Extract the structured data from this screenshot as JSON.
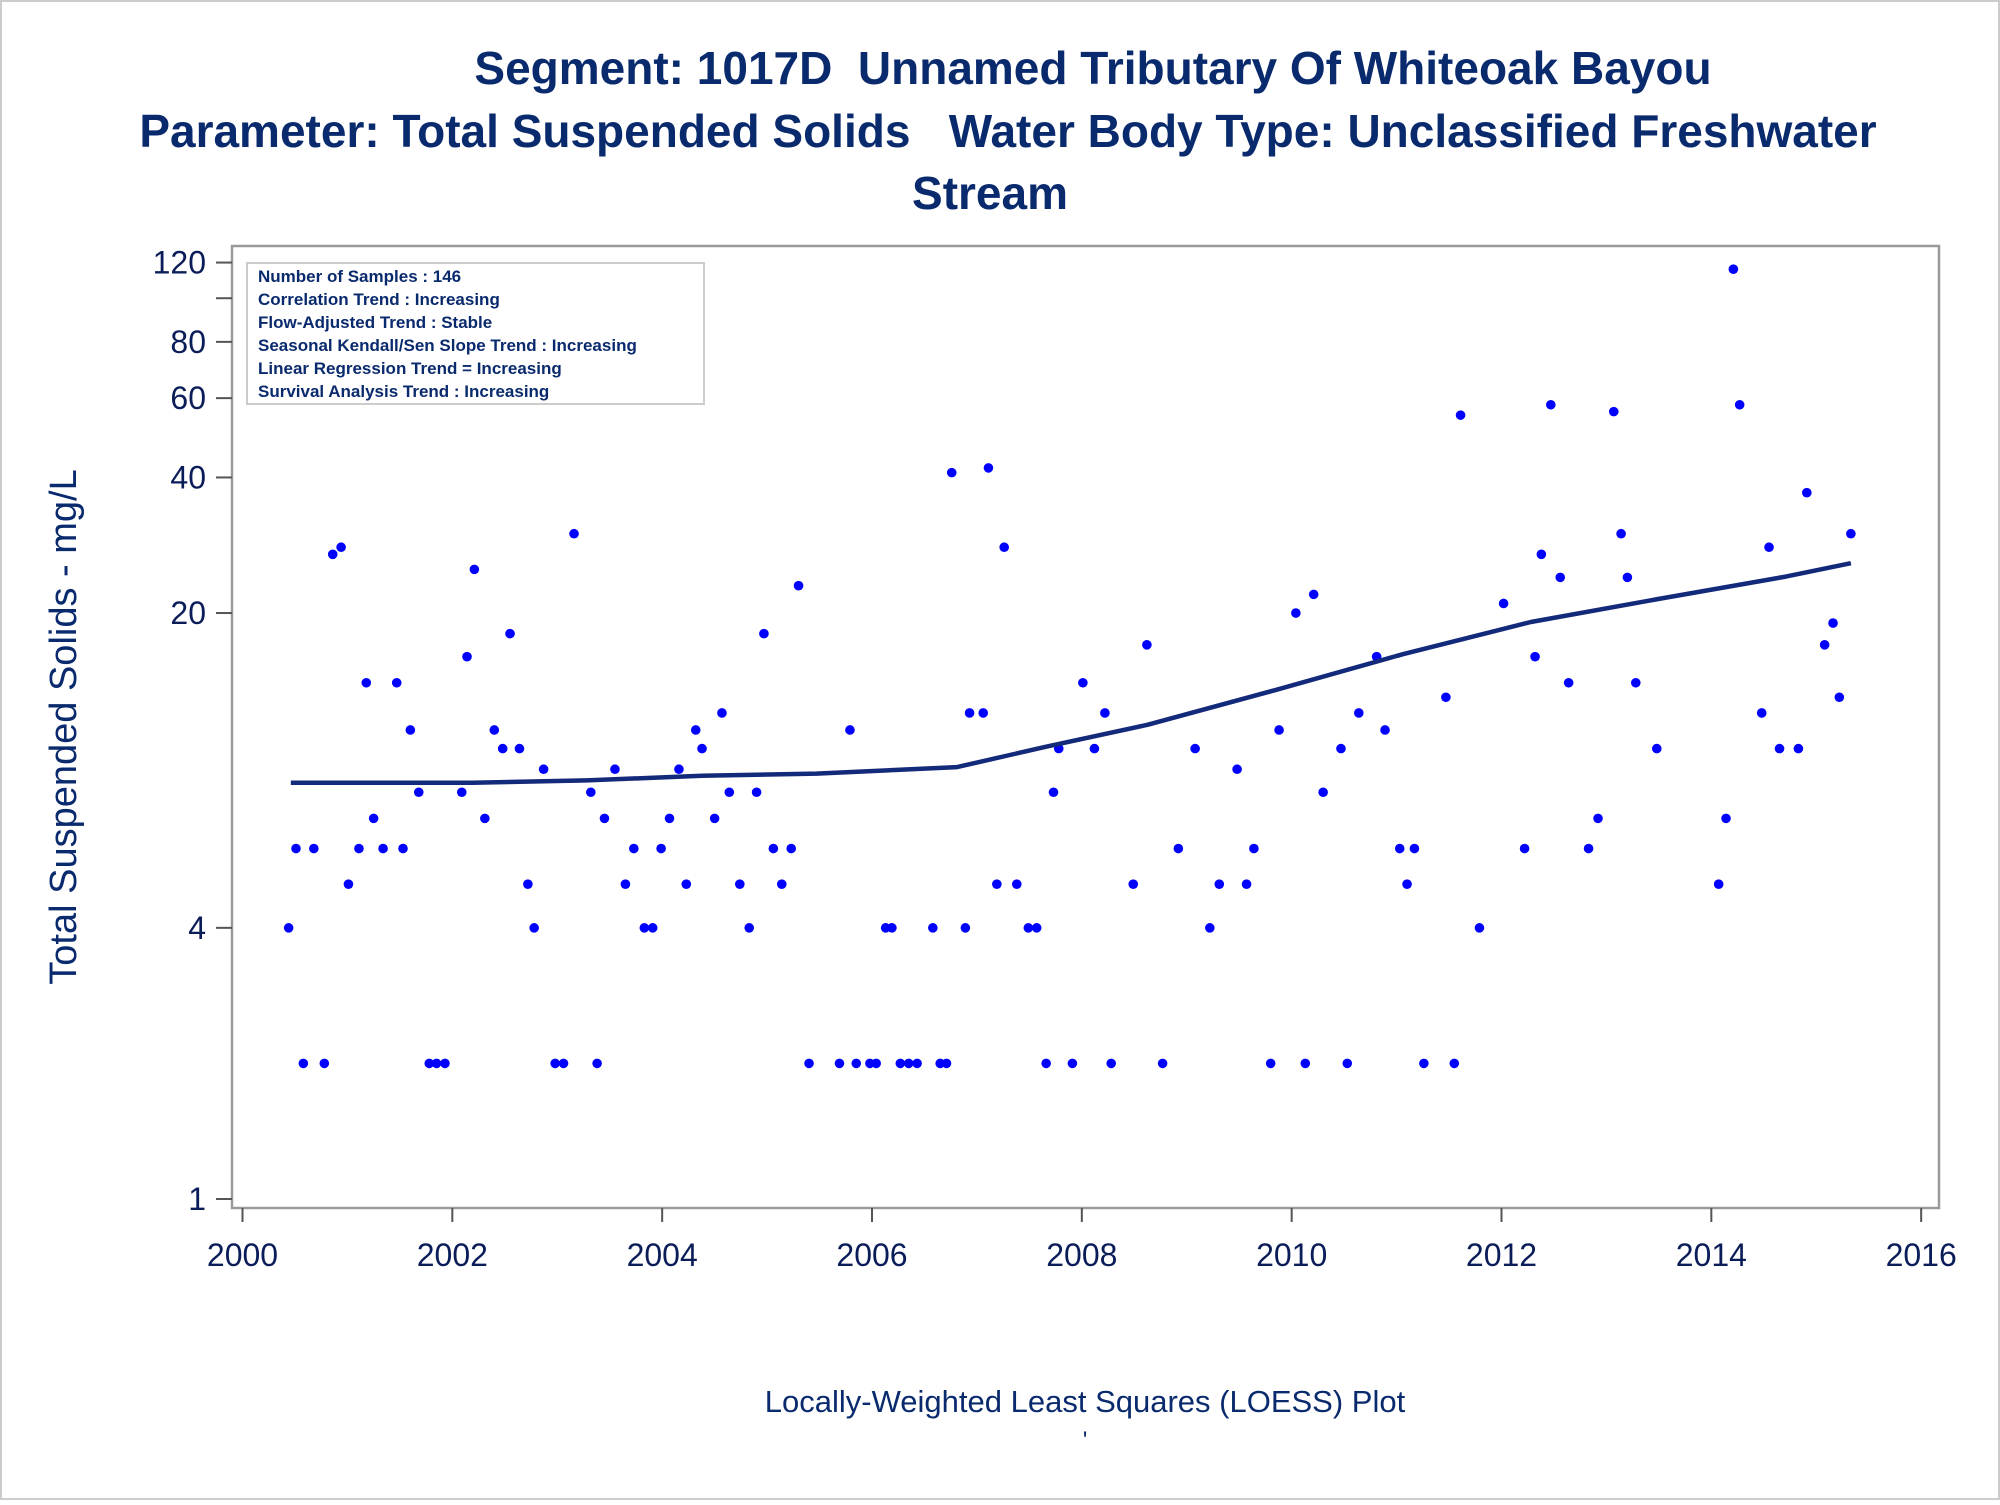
{
  "chart_data": {
    "type": "scatter",
    "title": "Segment: 1017D  Unnamed Tributary Of Whiteoak Bayou",
    "subtitle": [
      "Parameter: Total Suspended Solids   Water Body Type: Unclassified Freshwater",
      "Stream"
    ],
    "ylabel": "Total Suspended Solids - mg/L",
    "xlabel": "Locally-Weighted Least Squares (LOESS) Plot",
    "footnote": "'",
    "stats_box": [
      "Number of Samples : 146",
      "Correlation Trend : Increasing",
      "Flow-Adjusted Trend : Stable",
      "Seasonal Kendall/Sen Slope Trend : Increasing",
      "Linear Regression Trend = Increasing",
      "Survival Analysis Trend : Increasing"
    ],
    "ylog": true,
    "xlim": [
      1999.9,
      2016.17
    ],
    "ylim": [
      0.955,
      130.6
    ],
    "xticks": [
      2000,
      2002,
      2004,
      2006,
      2008,
      2010,
      2012,
      2014,
      2016
    ],
    "yticks": [
      1,
      4,
      20,
      40,
      60,
      80,
      120
    ],
    "yminor_ticks": [
      100
    ],
    "series": [
      {
        "name": "Samples",
        "kind": "points",
        "color": "#0000ff",
        "x": [
          2000.44,
          2000.51,
          2000.58,
          2000.68,
          2000.78,
          2000.86,
          2000.94,
          2001.01,
          2001.11,
          2001.18,
          2001.25,
          2001.34,
          2001.47,
          2001.53,
          2001.6,
          2001.68,
          2001.78,
          2001.85,
          2001.93,
          2002.09,
          2002.14,
          2002.21,
          2002.31,
          2002.4,
          2002.48,
          2002.55,
          2002.64,
          2002.72,
          2002.78,
          2002.87,
          2002.98,
          2003.06,
          2003.16,
          2003.32,
          2003.38,
          2003.45,
          2003.55,
          2003.65,
          2003.73,
          2003.83,
          2003.91,
          2003.99,
          2004.07,
          2004.16,
          2004.23,
          2004.32,
          2004.38,
          2004.5,
          2004.57,
          2004.64,
          2004.74,
          2004.83,
          2004.9,
          2004.97,
          2005.06,
          2005.14,
          2005.23,
          2005.3,
          2005.4,
          2005.69,
          2005.79,
          2005.85,
          2005.98,
          2006.04,
          2006.13,
          2006.19,
          2006.27,
          2006.35,
          2006.43,
          2006.58,
          2006.65,
          2006.71,
          2006.76,
          2006.89,
          2006.93,
          2007.06,
          2007.11,
          2007.19,
          2007.26,
          2007.38,
          2007.49,
          2007.57,
          2007.66,
          2007.73,
          2007.78,
          2007.91,
          2008.01,
          2008.12,
          2008.22,
          2008.28,
          2008.49,
          2008.62,
          2008.77,
          2008.92,
          2009.08,
          2009.22,
          2009.31,
          2009.48,
          2009.57,
          2009.64,
          2009.8,
          2009.88,
          2010.04,
          2010.13,
          2010.21,
          2010.3,
          2010.47,
          2010.53,
          2010.64,
          2010.81,
          2010.89,
          2011.03,
          2011.1,
          2011.17,
          2011.26,
          2011.47,
          2011.55,
          2011.61,
          2011.79,
          2012.02,
          2012.22,
          2012.32,
          2012.38,
          2012.47,
          2012.56,
          2012.64,
          2012.83,
          2012.92,
          2013.07,
          2013.14,
          2013.2,
          2013.28,
          2013.48,
          2014.07,
          2014.14,
          2014.21,
          2014.27,
          2014.48,
          2014.55,
          2014.65,
          2014.83,
          2014.91,
          2015.08,
          2015.16,
          2015.22,
          2015.33
        ],
        "values": [
          4,
          6,
          2,
          6,
          2,
          27,
          28,
          5,
          6,
          14,
          7,
          6,
          14,
          6,
          11,
          8,
          2,
          2,
          2,
          8,
          16,
          25,
          7,
          11,
          10,
          18,
          10,
          5,
          4,
          9,
          2,
          2,
          30,
          8,
          2,
          7,
          9,
          5,
          6,
          4,
          4,
          6,
          7,
          9,
          5,
          11,
          10,
          7,
          12,
          8,
          5,
          4,
          8,
          18,
          6,
          5,
          6,
          23,
          2,
          2,
          11,
          2,
          2,
          2,
          4,
          4,
          2,
          2,
          2,
          4,
          2,
          2,
          41,
          4,
          12,
          12,
          42,
          5,
          28,
          5,
          4,
          4,
          2,
          8,
          10,
          2,
          14,
          10,
          12,
          2,
          5,
          17,
          2,
          6,
          10,
          4,
          5,
          9,
          5,
          6,
          2,
          11,
          20,
          2,
          22,
          8,
          10,
          2,
          12,
          16,
          11,
          6,
          5,
          6,
          2,
          13,
          2,
          55,
          4,
          21,
          6,
          16,
          27,
          58,
          24,
          14,
          6,
          7,
          56,
          30,
          24,
          14,
          10,
          5,
          7,
          116,
          58,
          12,
          28,
          10,
          10,
          37,
          17,
          19,
          13,
          30
        ]
      },
      {
        "name": "LOESS",
        "kind": "line",
        "color": "#13297a",
        "x": [
          2000.46,
          2002.19,
          2003.28,
          2004.38,
          2005.47,
          2006.81,
          2007.66,
          2008.63,
          2009.85,
          2011.06,
          2012.28,
          2013.5,
          2014.71,
          2015.33
        ],
        "values": [
          8.4,
          8.4,
          8.5,
          8.7,
          8.8,
          9.1,
          10.1,
          11.3,
          13.5,
          16.2,
          19.1,
          21.5,
          24.1,
          25.8
        ]
      }
    ]
  }
}
